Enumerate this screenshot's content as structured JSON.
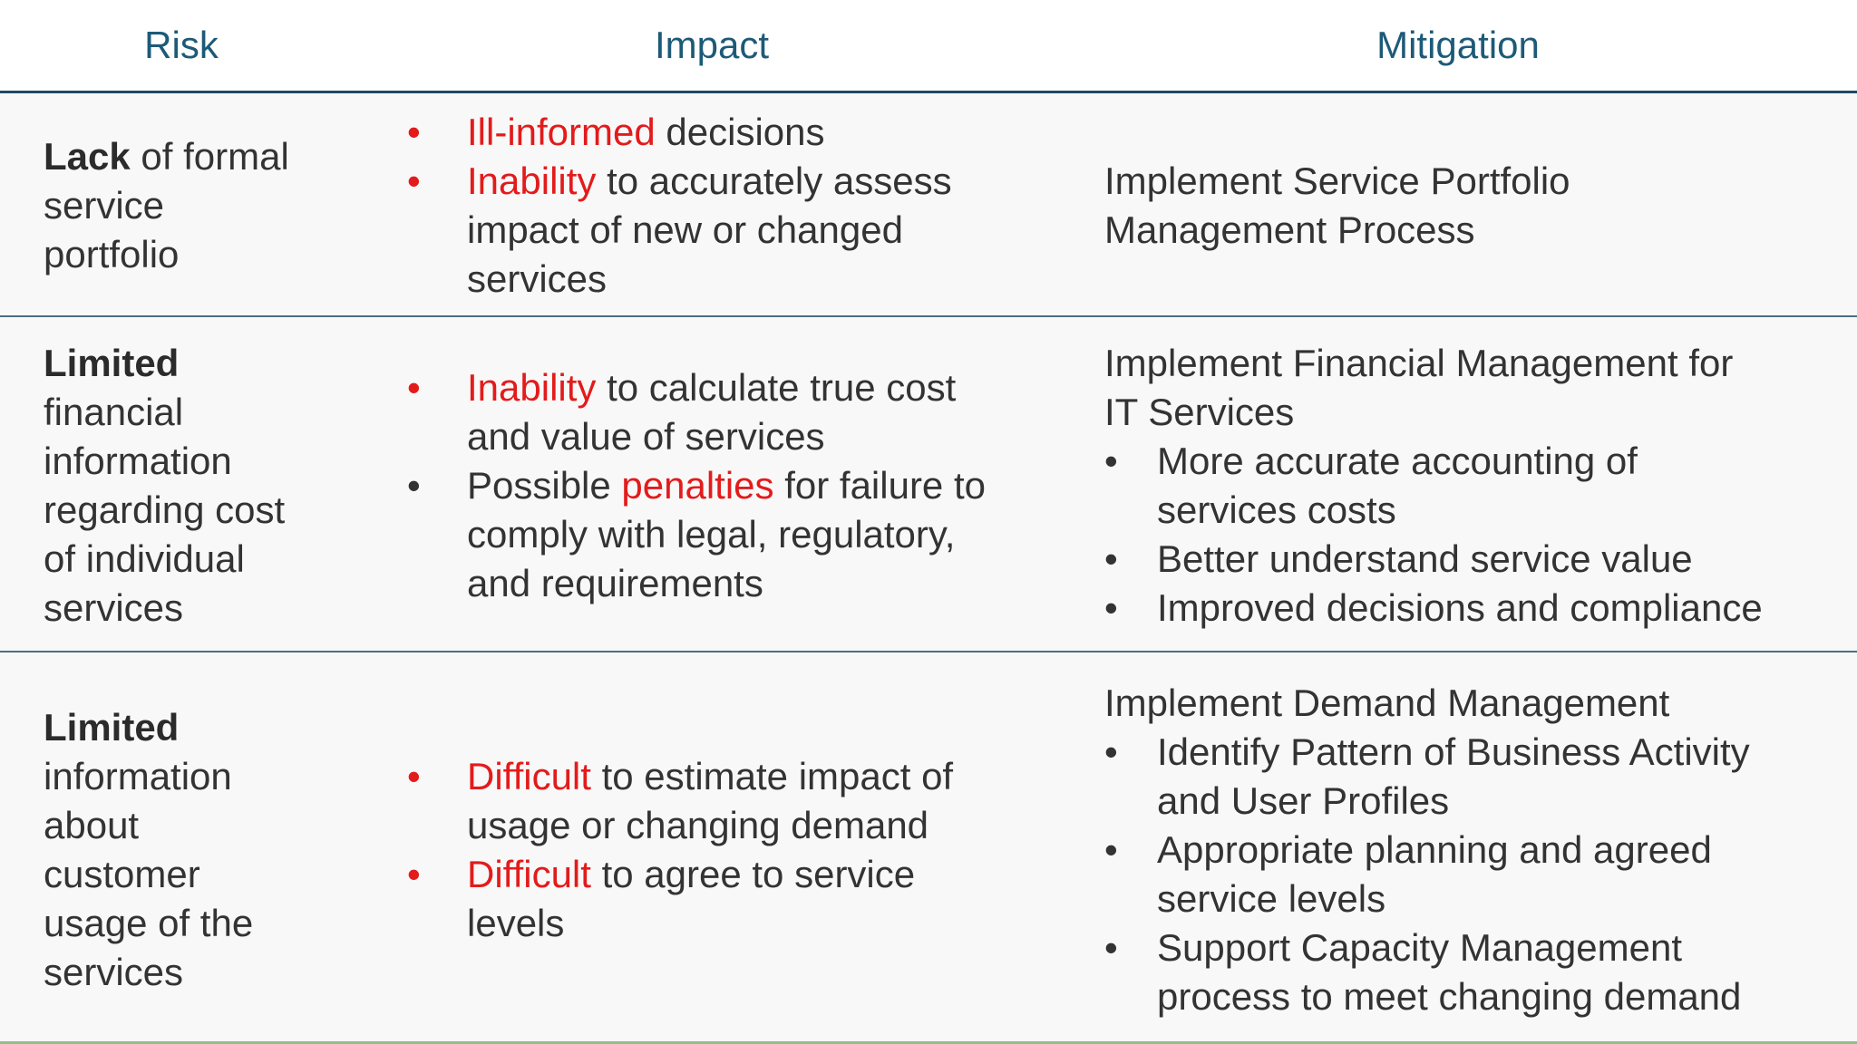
{
  "header": {
    "risk": "Risk",
    "impact": "Impact",
    "mitigation": "Mitigation"
  },
  "rows": [
    {
      "risk": {
        "bold": "Lack",
        "rest": " of formal",
        "lines": [
          "service",
          "portfolio"
        ]
      },
      "impact": [
        {
          "bullet_color": "#e31b1b",
          "hi": "Ill-informed",
          "rest": " decisions",
          "lines": []
        },
        {
          "bullet_color": "#e31b1b",
          "hi": "Inability",
          "rest": " to accurately assess",
          "lines": [
            "impact of new or changed",
            "services"
          ]
        }
      ],
      "mitigation": {
        "heading": [
          "Implement Service Portfolio",
          "Management Process"
        ],
        "bullets": []
      }
    },
    {
      "risk": {
        "bold": "Limited",
        "rest": "",
        "lines": [
          "financial",
          "information",
          "regarding cost",
          "of individual",
          "services"
        ]
      },
      "impact": [
        {
          "bullet_color": "#e31b1b",
          "hi": "Inability",
          "rest": " to calculate true cost",
          "lines": [
            "and value of services"
          ]
        },
        {
          "bullet_color": "#333333",
          "pre": "Possible ",
          "hi": "penalties",
          "rest": " for failure to",
          "lines": [
            "comply with legal, regulatory,",
            "and requirements"
          ]
        }
      ],
      "mitigation": {
        "heading": [
          "Implement Financial Management for",
          "IT Services"
        ],
        "bullets": [
          [
            "More accurate accounting of",
            "services costs"
          ],
          [
            "Better understand service value"
          ],
          [
            "Improved decisions and compliance"
          ]
        ]
      }
    },
    {
      "risk": {
        "bold": "Limited",
        "rest": "",
        "lines": [
          "information",
          "about",
          "customer",
          "usage of the",
          "services"
        ]
      },
      "impact": [
        {
          "bullet_color": "#e31b1b",
          "hi": "Difficult",
          "rest": " to estimate impact of",
          "lines": [
            "usage or changing demand"
          ]
        },
        {
          "bullet_color": "#e31b1b",
          "hi": "Difficult",
          "rest": " to agree to service",
          "lines": [
            "levels"
          ]
        }
      ],
      "mitigation": {
        "heading": [
          "Implement Demand Management"
        ],
        "bullets": [
          [
            "Identify Pattern of Business Activity",
            "and User Profiles"
          ],
          [
            "Appropriate planning and agreed",
            "service levels"
          ],
          [
            "Support Capacity Management",
            "process to meet changing demand"
          ]
        ]
      }
    }
  ]
}
